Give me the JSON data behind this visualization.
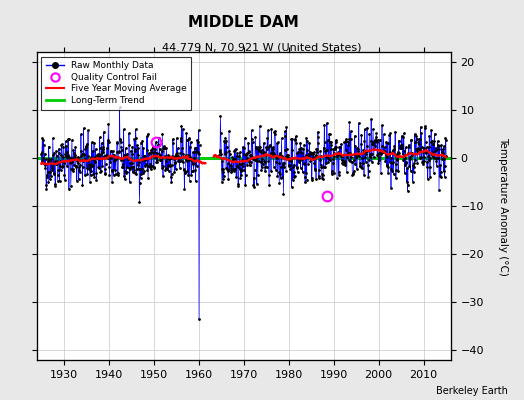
{
  "title": "MIDDLE DAM",
  "subtitle": "44.779 N, 70.921 W (United States)",
  "ylabel": "Temperature Anomaly (°C)",
  "xlabel_credit": "Berkeley Earth",
  "xlim": [
    1924,
    2016
  ],
  "ylim": [
    -42,
    22
  ],
  "yticks": [
    -40,
    -30,
    -20,
    -10,
    0,
    10,
    20
  ],
  "xticks": [
    1930,
    1940,
    1950,
    1960,
    1970,
    1980,
    1990,
    2000,
    2010
  ],
  "start_year": 1925,
  "end_year": 2015,
  "bg_color": "#e8e8e8",
  "plot_bg_color": "#ffffff",
  "raw_line_color": "#0000ff",
  "raw_marker_color": "#000000",
  "qc_fail_color": "#ff00ff",
  "moving_avg_color": "#ff0000",
  "trend_color": "#00cc00",
  "grid_color": "#c8c8c8",
  "seed": 42,
  "noise_std": 2.8,
  "gap_start": 1960.25,
  "gap_end": 1964.5,
  "spike_year": 1960.1,
  "spike_val": -33.5,
  "qc1_year": 1950.5,
  "qc1_val": 3.2,
  "qc2_year": 1988.5,
  "qc2_val": -8.0,
  "trend_y": 0.0
}
